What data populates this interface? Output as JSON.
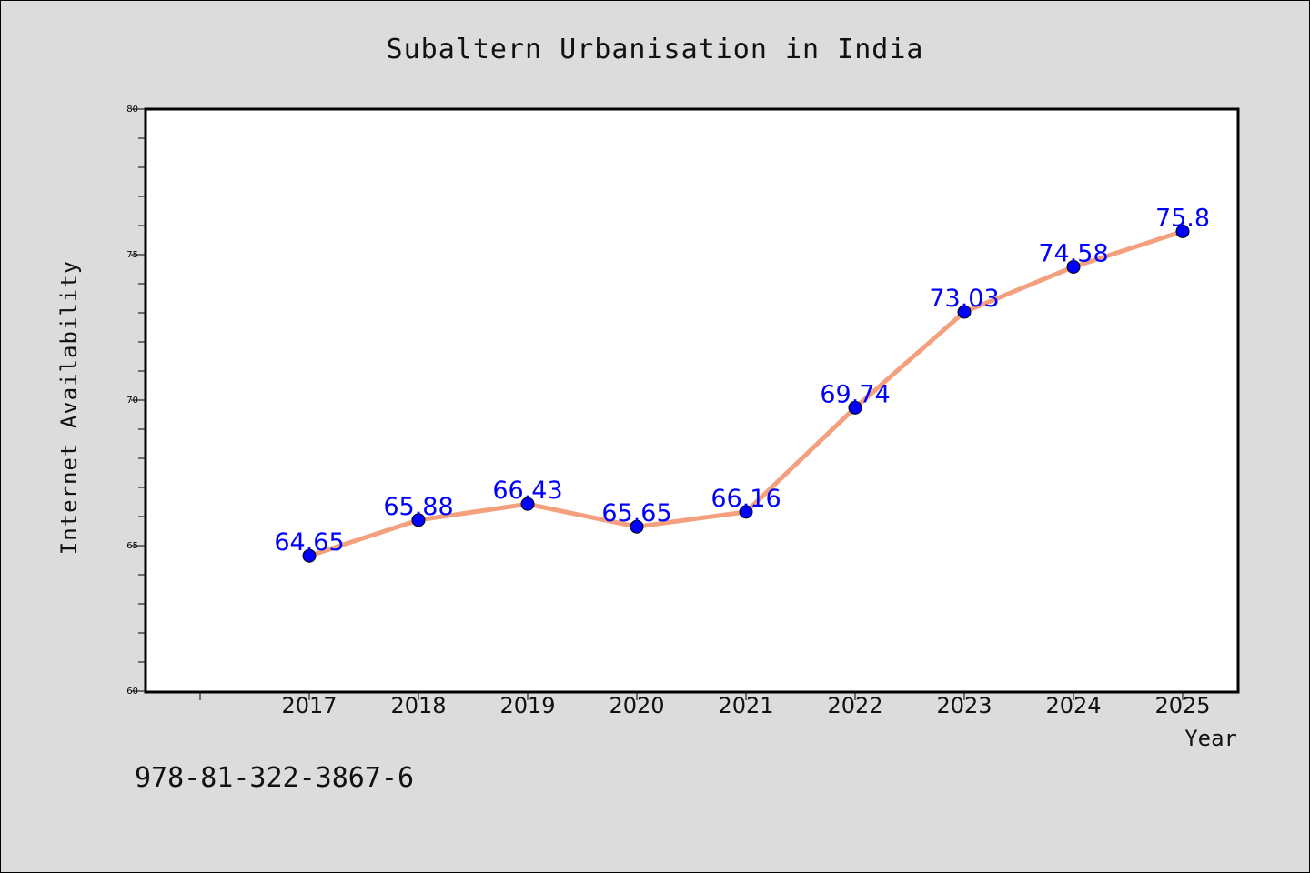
{
  "chart_data": {
    "type": "line",
    "title": "Subaltern Urbanisation in India",
    "xlabel": "Year",
    "ylabel": "Internet Availability",
    "categories": [
      "2017",
      "2018",
      "2019",
      "2020",
      "2021",
      "2022",
      "2023",
      "2024",
      "2025"
    ],
    "values": [
      64.65,
      65.88,
      66.43,
      65.65,
      66.16,
      69.74,
      73.03,
      74.58,
      75.8
    ],
    "data_labels": [
      "64.65",
      "65.88",
      "66.43",
      "65.65",
      "66.16",
      "69.74",
      "73.03",
      "74.58",
      "75.8"
    ],
    "ylim": [
      60,
      80
    ],
    "yticks": [
      60,
      65,
      70,
      75,
      80
    ],
    "grid": false,
    "legend": "none",
    "colors": {
      "line": "#f4a07e",
      "marker": "#0000ff",
      "label": "#0000ff",
      "background": "#dcdcdc",
      "plot_background": "#ffffff"
    }
  },
  "footer_text": "978-81-322-3867-6"
}
